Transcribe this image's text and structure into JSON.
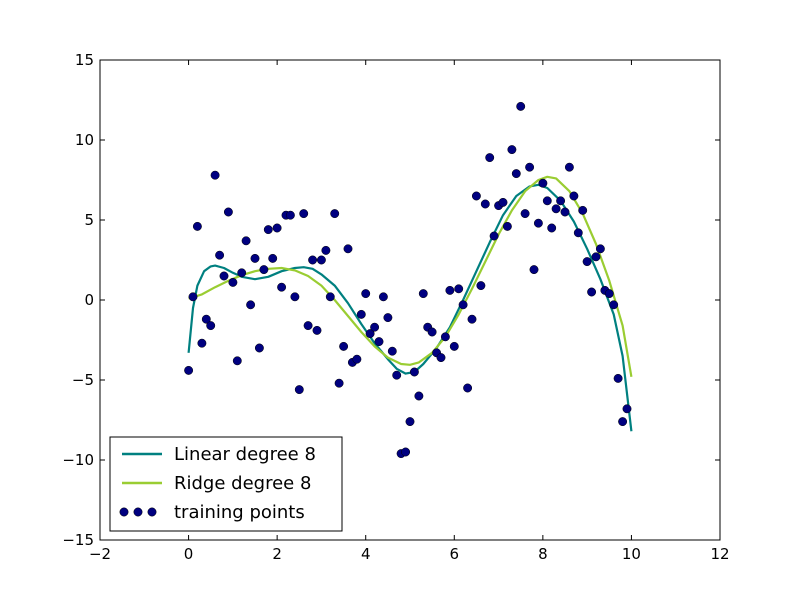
{
  "chart_data": {
    "type": "scatter",
    "title": "",
    "xlabel": "",
    "ylabel": "",
    "xlim": [
      -2,
      12
    ],
    "ylim": [
      -15,
      15
    ],
    "x_ticks": [
      -2,
      0,
      2,
      4,
      6,
      8,
      10,
      12
    ],
    "y_ticks": [
      -15,
      -10,
      -5,
      0,
      5,
      10,
      15
    ],
    "grid": false,
    "legend": {
      "placement": "lower-left",
      "entries": [
        {
          "label": "Linear degree 8",
          "kind": "line",
          "color": "#008080"
        },
        {
          "label": "Ridge degree 8",
          "kind": "line",
          "color": "#9acd32"
        },
        {
          "label": "training points",
          "kind": "markers",
          "color": "#000080"
        }
      ]
    },
    "series": [
      {
        "name": "Linear degree 8",
        "type": "line",
        "color": "#008080",
        "points": [
          [
            0,
            -3.3
          ],
          [
            0.1,
            -0.5
          ],
          [
            0.2,
            0.9
          ],
          [
            0.35,
            1.8
          ],
          [
            0.5,
            2.1
          ],
          [
            0.6,
            2.15
          ],
          [
            0.8,
            2.0
          ],
          [
            1.0,
            1.7
          ],
          [
            1.2,
            1.45
          ],
          [
            1.5,
            1.3
          ],
          [
            1.8,
            1.45
          ],
          [
            2.1,
            1.8
          ],
          [
            2.4,
            2.0
          ],
          [
            2.6,
            2.05
          ],
          [
            2.8,
            1.95
          ],
          [
            3.0,
            1.6
          ],
          [
            3.3,
            0.9
          ],
          [
            3.6,
            -0.2
          ],
          [
            3.9,
            -1.5
          ],
          [
            4.2,
            -2.7
          ],
          [
            4.5,
            -3.7
          ],
          [
            4.7,
            -4.3
          ],
          [
            4.9,
            -4.6
          ],
          [
            5.1,
            -4.5
          ],
          [
            5.3,
            -4.0
          ],
          [
            5.6,
            -3.0
          ],
          [
            5.9,
            -1.7
          ],
          [
            6.2,
            0.0
          ],
          [
            6.5,
            1.8
          ],
          [
            6.8,
            3.6
          ],
          [
            7.1,
            5.3
          ],
          [
            7.4,
            6.5
          ],
          [
            7.7,
            7.1
          ],
          [
            7.9,
            7.2
          ],
          [
            8.1,
            7.0
          ],
          [
            8.4,
            6.2
          ],
          [
            8.7,
            4.9
          ],
          [
            9.0,
            3.2
          ],
          [
            9.3,
            1.3
          ],
          [
            9.6,
            -0.9
          ],
          [
            9.8,
            -3.5
          ],
          [
            10.0,
            -8.2
          ]
        ]
      },
      {
        "name": "Ridge degree 8",
        "type": "line",
        "color": "#9acd32",
        "points": [
          [
            0,
            0.1
          ],
          [
            0.3,
            0.35
          ],
          [
            0.6,
            0.8
          ],
          [
            0.9,
            1.2
          ],
          [
            1.2,
            1.55
          ],
          [
            1.5,
            1.8
          ],
          [
            1.8,
            1.95
          ],
          [
            2.1,
            2.0
          ],
          [
            2.4,
            1.85
          ],
          [
            2.7,
            1.5
          ],
          [
            3.0,
            0.9
          ],
          [
            3.3,
            0.0
          ],
          [
            3.6,
            -1.0
          ],
          [
            3.9,
            -2.0
          ],
          [
            4.2,
            -2.9
          ],
          [
            4.5,
            -3.6
          ],
          [
            4.8,
            -4.0
          ],
          [
            5.0,
            -4.05
          ],
          [
            5.2,
            -3.9
          ],
          [
            5.5,
            -3.3
          ],
          [
            5.8,
            -2.3
          ],
          [
            6.1,
            -0.9
          ],
          [
            6.4,
            0.7
          ],
          [
            6.7,
            2.4
          ],
          [
            7.0,
            4.1
          ],
          [
            7.3,
            5.6
          ],
          [
            7.6,
            6.8
          ],
          [
            7.9,
            7.5
          ],
          [
            8.1,
            7.7
          ],
          [
            8.3,
            7.6
          ],
          [
            8.6,
            6.8
          ],
          [
            8.9,
            5.4
          ],
          [
            9.2,
            3.5
          ],
          [
            9.5,
            1.2
          ],
          [
            9.8,
            -1.6
          ],
          [
            10.0,
            -4.8
          ]
        ]
      },
      {
        "name": "training points",
        "type": "scatter",
        "color": "#000080",
        "points": [
          [
            0,
            -4.4
          ],
          [
            0.1,
            0.2
          ],
          [
            0.2,
            4.6
          ],
          [
            0.3,
            -2.7
          ],
          [
            0.4,
            -1.2
          ],
          [
            0.5,
            -1.6
          ],
          [
            0.6,
            7.8
          ],
          [
            0.7,
            2.8
          ],
          [
            0.8,
            1.5
          ],
          [
            0.9,
            5.5
          ],
          [
            1.0,
            1.1
          ],
          [
            1.1,
            -3.8
          ],
          [
            1.2,
            1.7
          ],
          [
            1.3,
            3.7
          ],
          [
            1.4,
            -0.3
          ],
          [
            1.5,
            2.6
          ],
          [
            1.6,
            -3.0
          ],
          [
            1.7,
            1.9
          ],
          [
            1.8,
            4.4
          ],
          [
            1.9,
            2.6
          ],
          [
            2.0,
            4.5
          ],
          [
            2.1,
            0.8
          ],
          [
            2.2,
            5.3
          ],
          [
            2.3,
            5.3
          ],
          [
            2.4,
            0.2
          ],
          [
            2.5,
            -5.6
          ],
          [
            2.6,
            5.4
          ],
          [
            2.7,
            -1.6
          ],
          [
            2.8,
            2.5
          ],
          [
            2.9,
            -1.9
          ],
          [
            3.0,
            2.5
          ],
          [
            3.1,
            3.1
          ],
          [
            3.2,
            0.2
          ],
          [
            3.3,
            5.4
          ],
          [
            3.4,
            -5.2
          ],
          [
            3.5,
            -2.9
          ],
          [
            3.6,
            3.2
          ],
          [
            3.7,
            -3.9
          ],
          [
            3.8,
            -3.7
          ],
          [
            3.9,
            -0.9
          ],
          [
            4.0,
            0.4
          ],
          [
            4.1,
            -2.1
          ],
          [
            4.2,
            -1.7
          ],
          [
            4.3,
            -2.6
          ],
          [
            4.4,
            0.2
          ],
          [
            4.5,
            -1.1
          ],
          [
            4.6,
            -3.2
          ],
          [
            4.7,
            -4.7
          ],
          [
            4.8,
            -9.6
          ],
          [
            4.9,
            -9.5
          ],
          [
            5.0,
            -7.6
          ],
          [
            5.1,
            -4.5
          ],
          [
            5.2,
            -6.0
          ],
          [
            5.3,
            0.4
          ],
          [
            5.4,
            -1.7
          ],
          [
            5.5,
            -2.0
          ],
          [
            5.6,
            -3.3
          ],
          [
            5.7,
            -3.6
          ],
          [
            5.8,
            -2.3
          ],
          [
            5.9,
            0.6
          ],
          [
            6.0,
            -2.9
          ],
          [
            6.1,
            0.7
          ],
          [
            6.2,
            -0.3
          ],
          [
            6.3,
            -5.5
          ],
          [
            6.4,
            -1.2
          ],
          [
            6.5,
            6.5
          ],
          [
            6.6,
            0.9
          ],
          [
            6.7,
            6.0
          ],
          [
            6.8,
            8.9
          ],
          [
            6.9,
            4.0
          ],
          [
            7.0,
            5.9
          ],
          [
            7.1,
            6.1
          ],
          [
            7.2,
            4.6
          ],
          [
            7.3,
            9.4
          ],
          [
            7.4,
            7.9
          ],
          [
            7.5,
            12.1
          ],
          [
            7.6,
            5.4
          ],
          [
            7.7,
            8.3
          ],
          [
            7.8,
            1.9
          ],
          [
            7.9,
            4.8
          ],
          [
            8.0,
            7.3
          ],
          [
            8.1,
            6.2
          ],
          [
            8.2,
            4.5
          ],
          [
            8.3,
            5.7
          ],
          [
            8.4,
            6.2
          ],
          [
            8.5,
            5.5
          ],
          [
            8.6,
            8.3
          ],
          [
            8.7,
            6.5
          ],
          [
            8.8,
            4.2
          ],
          [
            8.9,
            5.6
          ],
          [
            9.0,
            2.4
          ],
          [
            9.1,
            0.5
          ],
          [
            9.2,
            2.7
          ],
          [
            9.3,
            3.2
          ],
          [
            9.4,
            0.6
          ],
          [
            9.5,
            0.4
          ],
          [
            9.6,
            -0.3
          ],
          [
            9.7,
            -4.9
          ],
          [
            9.8,
            -7.6
          ],
          [
            9.9,
            -6.8
          ]
        ]
      }
    ]
  }
}
